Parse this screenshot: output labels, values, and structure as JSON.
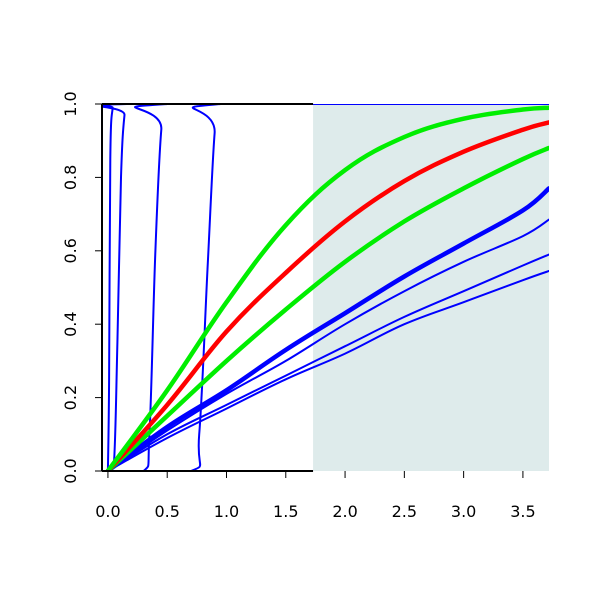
{
  "chart_data": {
    "type": "line",
    "title": "",
    "xlabel": "",
    "ylabel": "",
    "xlim": [
      -0.05,
      3.72
    ],
    "ylim": [
      0.0,
      1.0
    ],
    "grid": false,
    "x_ticks": [
      0.0,
      0.5,
      1.0,
      1.5,
      2.0,
      2.5,
      3.0,
      3.5
    ],
    "x_tick_labels": [
      "0.0",
      "0.5",
      "1.0",
      "1.5",
      "2.0",
      "2.5",
      "3.0",
      "3.5"
    ],
    "y_ticks": [
      0.0,
      0.2,
      0.4,
      0.6,
      0.8,
      1.0
    ],
    "y_tick_labels": [
      "0.0",
      "0.2",
      "0.4",
      "0.6",
      "0.8",
      "1.0"
    ],
    "shaded_region": {
      "x": [
        1.73,
        3.72
      ],
      "color": "#deebeb"
    },
    "series": [
      {
        "color": "#0000ff",
        "width": "thin",
        "x": [
          0.0,
          0.01,
          0.02,
          0.04,
          0.06,
          3.72
        ],
        "y": [
          0.0,
          0.25,
          0.85,
          0.99,
          1.0,
          1.0
        ]
      },
      {
        "color": "#0000ff",
        "width": "thin",
        "x": [
          0.0,
          0.05,
          0.08,
          0.11,
          0.14,
          0.17,
          3.72
        ],
        "y": [
          0.0,
          0.02,
          0.35,
          0.8,
          0.97,
          1.0,
          1.0
        ]
      },
      {
        "color": "#0000ff",
        "width": "thin",
        "x": [
          0.0,
          0.3,
          0.35,
          0.4,
          0.45,
          0.5,
          3.72
        ],
        "y": [
          0.0,
          0.0,
          0.1,
          0.6,
          0.93,
          1.0,
          1.0
        ]
      },
      {
        "color": "#0000ff",
        "width": "thin",
        "x": [
          0.0,
          0.7,
          0.77,
          0.84,
          0.9,
          0.95,
          3.72
        ],
        "y": [
          0.0,
          0.0,
          0.1,
          0.55,
          0.92,
          1.0,
          1.0
        ]
      },
      {
        "color": "#0000ff",
        "width": "thin",
        "x": [
          0.0,
          0.5,
          1.0,
          1.5,
          2.0,
          2.5,
          3.0,
          3.5,
          3.72
        ],
        "y": [
          0.0,
          0.09,
          0.17,
          0.25,
          0.32,
          0.4,
          0.46,
          0.52,
          0.545
        ]
      },
      {
        "color": "#0000ff",
        "width": "thin",
        "x": [
          0.0,
          0.5,
          1.0,
          1.5,
          2.0,
          2.5,
          3.0,
          3.5,
          3.72
        ],
        "y": [
          0.0,
          0.1,
          0.18,
          0.26,
          0.34,
          0.42,
          0.49,
          0.56,
          0.59
        ]
      },
      {
        "color": "#0000ff",
        "width": "thin",
        "x": [
          0.0,
          0.5,
          1.0,
          1.5,
          2.0,
          2.5,
          3.0,
          3.5,
          3.72
        ],
        "y": [
          0.0,
          0.11,
          0.21,
          0.3,
          0.4,
          0.49,
          0.57,
          0.64,
          0.685
        ]
      },
      {
        "color": "#0000ff",
        "width": "thick",
        "x": [
          0.0,
          0.5,
          1.0,
          1.5,
          2.0,
          2.5,
          3.0,
          3.5,
          3.72
        ],
        "y": [
          0.0,
          0.12,
          0.22,
          0.33,
          0.43,
          0.53,
          0.62,
          0.71,
          0.77
        ]
      },
      {
        "color": "#00ee00",
        "width": "thick",
        "x": [
          0.0,
          0.5,
          1.0,
          1.5,
          2.0,
          2.5,
          3.0,
          3.5,
          3.72
        ],
        "y": [
          0.0,
          0.15,
          0.3,
          0.44,
          0.57,
          0.68,
          0.77,
          0.85,
          0.88
        ]
      },
      {
        "color": "#ff0000",
        "width": "thick",
        "x": [
          0.0,
          0.5,
          1.0,
          1.5,
          2.0,
          2.5,
          3.0,
          3.5,
          3.72
        ],
        "y": [
          0.0,
          0.18,
          0.38,
          0.54,
          0.68,
          0.79,
          0.87,
          0.93,
          0.95
        ]
      },
      {
        "color": "#00ee00",
        "width": "thick",
        "x": [
          0.0,
          0.5,
          1.0,
          1.5,
          2.0,
          2.5,
          3.0,
          3.5,
          3.72
        ],
        "y": [
          0.0,
          0.22,
          0.46,
          0.67,
          0.82,
          0.91,
          0.96,
          0.985,
          0.99
        ]
      }
    ]
  }
}
